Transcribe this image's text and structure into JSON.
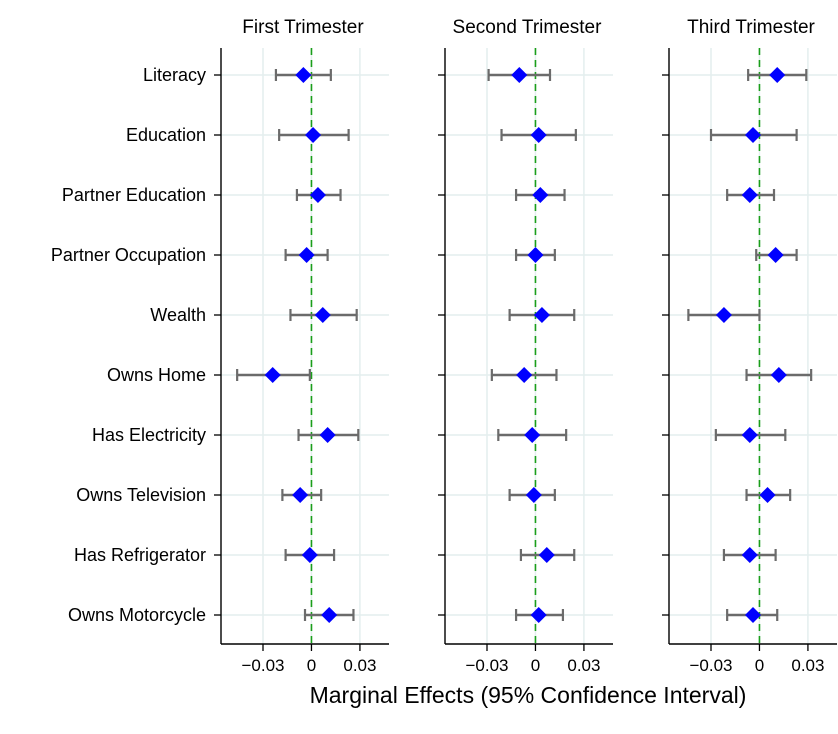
{
  "chart_data": [
    {
      "type": "scatter",
      "panel": "First Trimester",
      "title": "First Trimester",
      "variables": [
        "Literacy",
        "Education",
        "Partner Education",
        "Partner Occupation",
        "Wealth",
        "Owns Home",
        "Has Electricity",
        "Owns Television",
        "Has Refrigerator",
        "Owns Motorcycle"
      ],
      "estimate": [
        -0.005,
        0.001,
        0.004,
        -0.003,
        0.007,
        -0.024,
        0.01,
        -0.007,
        -0.001,
        0.011
      ],
      "ci_low": [
        -0.022,
        -0.02,
        -0.009,
        -0.016,
        -0.013,
        -0.046,
        -0.008,
        -0.018,
        -0.016,
        -0.004
      ],
      "ci_high": [
        0.012,
        0.023,
        0.018,
        0.01,
        0.028,
        -0.001,
        0.029,
        0.006,
        0.014,
        0.026
      ],
      "xticks": [
        -0.03,
        0,
        0.03
      ],
      "xlim": [
        -0.056,
        0.048
      ]
    },
    {
      "type": "scatter",
      "panel": "Second Trimester",
      "title": "Second Trimester",
      "variables": [
        "Literacy",
        "Education",
        "Partner Education",
        "Partner Occupation",
        "Wealth",
        "Owns Home",
        "Has Electricity",
        "Owns Television",
        "Has Refrigerator",
        "Owns Motorcycle"
      ],
      "estimate": [
        -0.01,
        0.002,
        0.003,
        0.0,
        0.004,
        -0.007,
        -0.002,
        -0.001,
        0.007,
        0.002
      ],
      "ci_low": [
        -0.029,
        -0.021,
        -0.012,
        -0.012,
        -0.016,
        -0.027,
        -0.023,
        -0.016,
        -0.009,
        -0.012
      ],
      "ci_high": [
        0.009,
        0.025,
        0.018,
        0.012,
        0.024,
        0.013,
        0.019,
        0.012,
        0.024,
        0.017
      ],
      "xticks": [
        -0.03,
        0,
        0.03
      ],
      "xlim": [
        -0.056,
        0.048
      ]
    },
    {
      "type": "scatter",
      "panel": "Third Trimester",
      "title": "Third Trimester",
      "variables": [
        "Literacy",
        "Education",
        "Partner Education",
        "Partner Occupation",
        "Wealth",
        "Owns Home",
        "Has Electricity",
        "Owns Television",
        "Has Refrigerator",
        "Owns Motorcycle"
      ],
      "estimate": [
        0.011,
        -0.004,
        -0.006,
        0.01,
        -0.022,
        0.012,
        -0.006,
        0.005,
        -0.006,
        -0.004
      ],
      "ci_low": [
        -0.007,
        -0.03,
        -0.02,
        -0.002,
        -0.044,
        -0.008,
        -0.027,
        -0.008,
        -0.022,
        -0.02
      ],
      "ci_high": [
        0.029,
        0.023,
        0.009,
        0.023,
        0.0,
        0.032,
        0.016,
        0.019,
        0.01,
        0.011
      ],
      "xticks": [
        -0.03,
        0,
        0.03
      ],
      "xlim": [
        -0.056,
        0.048
      ]
    }
  ],
  "tick_labels": [
    "−0.03",
    "0",
    "0.03"
  ],
  "xlabel": "Marginal Effects (95% Confidence Interval)",
  "colors": {
    "marker": "#0000ff",
    "ci": "#6b6b6b",
    "reference_line": "#1a9e1a",
    "grid": "#e4eeee"
  }
}
